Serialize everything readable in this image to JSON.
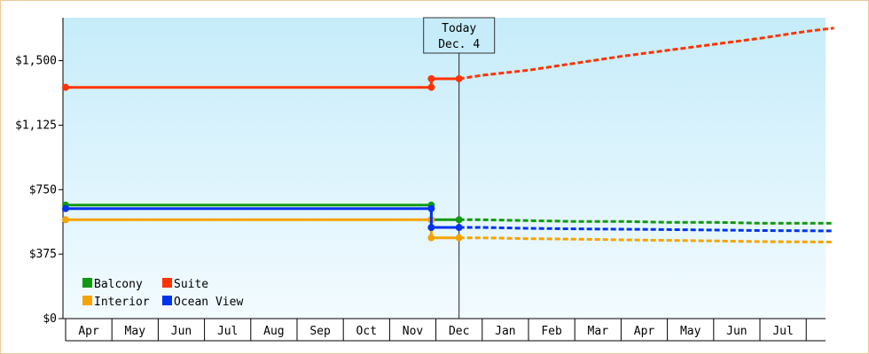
{
  "chart_data": {
    "type": "line",
    "title": "",
    "xlabel": "",
    "ylabel": "",
    "ylim": [
      0,
      1750
    ],
    "y_ticks": [
      {
        "value": 0,
        "label": "$0"
      },
      {
        "value": 375,
        "label": "$375"
      },
      {
        "value": 750,
        "label": "$750"
      },
      {
        "value": 1125,
        "label": "$1,125"
      },
      {
        "value": 1500,
        "label": "$1,500"
      }
    ],
    "months": [
      "Apr",
      "May",
      "Jun",
      "Jul",
      "Aug",
      "Sep",
      "Oct",
      "Nov",
      "Dec",
      "Jan",
      "Feb",
      "Mar",
      "Apr",
      "May",
      "Jun",
      "Jul"
    ],
    "today": {
      "line1": "Today",
      "line2": "Dec. 4",
      "x": 8.5
    },
    "grid": false,
    "legend_position": "bottom-left",
    "series": [
      {
        "name": "Balcony",
        "color": "#119911",
        "history": [
          [
            0,
            660
          ],
          [
            7.9,
            660
          ]
        ],
        "step": [
          [
            7.9,
            575
          ],
          [
            8.5,
            575
          ]
        ],
        "forecast": [
          [
            8.5,
            575
          ],
          [
            9.0,
            575
          ],
          [
            10.0,
            570
          ],
          [
            11.0,
            565
          ],
          [
            12.0,
            565
          ],
          [
            13.0,
            560
          ],
          [
            14.0,
            560
          ],
          [
            15.0,
            555
          ],
          [
            16.6,
            555
          ]
        ]
      },
      {
        "name": "Suite",
        "color": "#ff3300",
        "history": [
          [
            0,
            1345
          ],
          [
            7.9,
            1345
          ]
        ],
        "step": [
          [
            7.9,
            1395
          ],
          [
            8.5,
            1395
          ]
        ],
        "forecast": [
          [
            8.5,
            1395
          ],
          [
            9.0,
            1415
          ],
          [
            10.0,
            1445
          ],
          [
            11.0,
            1485
          ],
          [
            12.0,
            1525
          ],
          [
            13.0,
            1560
          ],
          [
            14.0,
            1595
          ],
          [
            15.0,
            1630
          ],
          [
            16.0,
            1670
          ],
          [
            16.6,
            1690
          ]
        ]
      },
      {
        "name": "Interior",
        "color": "#f5a300",
        "history": [
          [
            0,
            575
          ],
          [
            7.9,
            575
          ]
        ],
        "step": [
          [
            7.9,
            470
          ],
          [
            8.5,
            470
          ]
        ],
        "forecast": [
          [
            8.5,
            470
          ],
          [
            9.0,
            470
          ],
          [
            10.0,
            465
          ],
          [
            11.0,
            462
          ],
          [
            12.0,
            458
          ],
          [
            13.0,
            455
          ],
          [
            14.0,
            452
          ],
          [
            15.0,
            448
          ],
          [
            16.6,
            445
          ]
        ]
      },
      {
        "name": "Ocean View",
        "color": "#0033ee",
        "history": [
          [
            0,
            640
          ],
          [
            7.9,
            640
          ]
        ],
        "step": [
          [
            7.9,
            530
          ],
          [
            8.5,
            530
          ]
        ],
        "forecast": [
          [
            8.5,
            530
          ],
          [
            9.0,
            530
          ],
          [
            10.0,
            525
          ],
          [
            11.0,
            522
          ],
          [
            12.0,
            520
          ],
          [
            13.0,
            518
          ],
          [
            14.0,
            515
          ],
          [
            15.0,
            512
          ],
          [
            16.6,
            510
          ]
        ]
      }
    ],
    "legend": [
      {
        "name": "Balcony",
        "color": "#119911"
      },
      {
        "name": "Suite",
        "color": "#ff3300"
      },
      {
        "name": "Interior",
        "color": "#f5a300"
      },
      {
        "name": "Ocean View",
        "color": "#0033ee"
      }
    ]
  }
}
